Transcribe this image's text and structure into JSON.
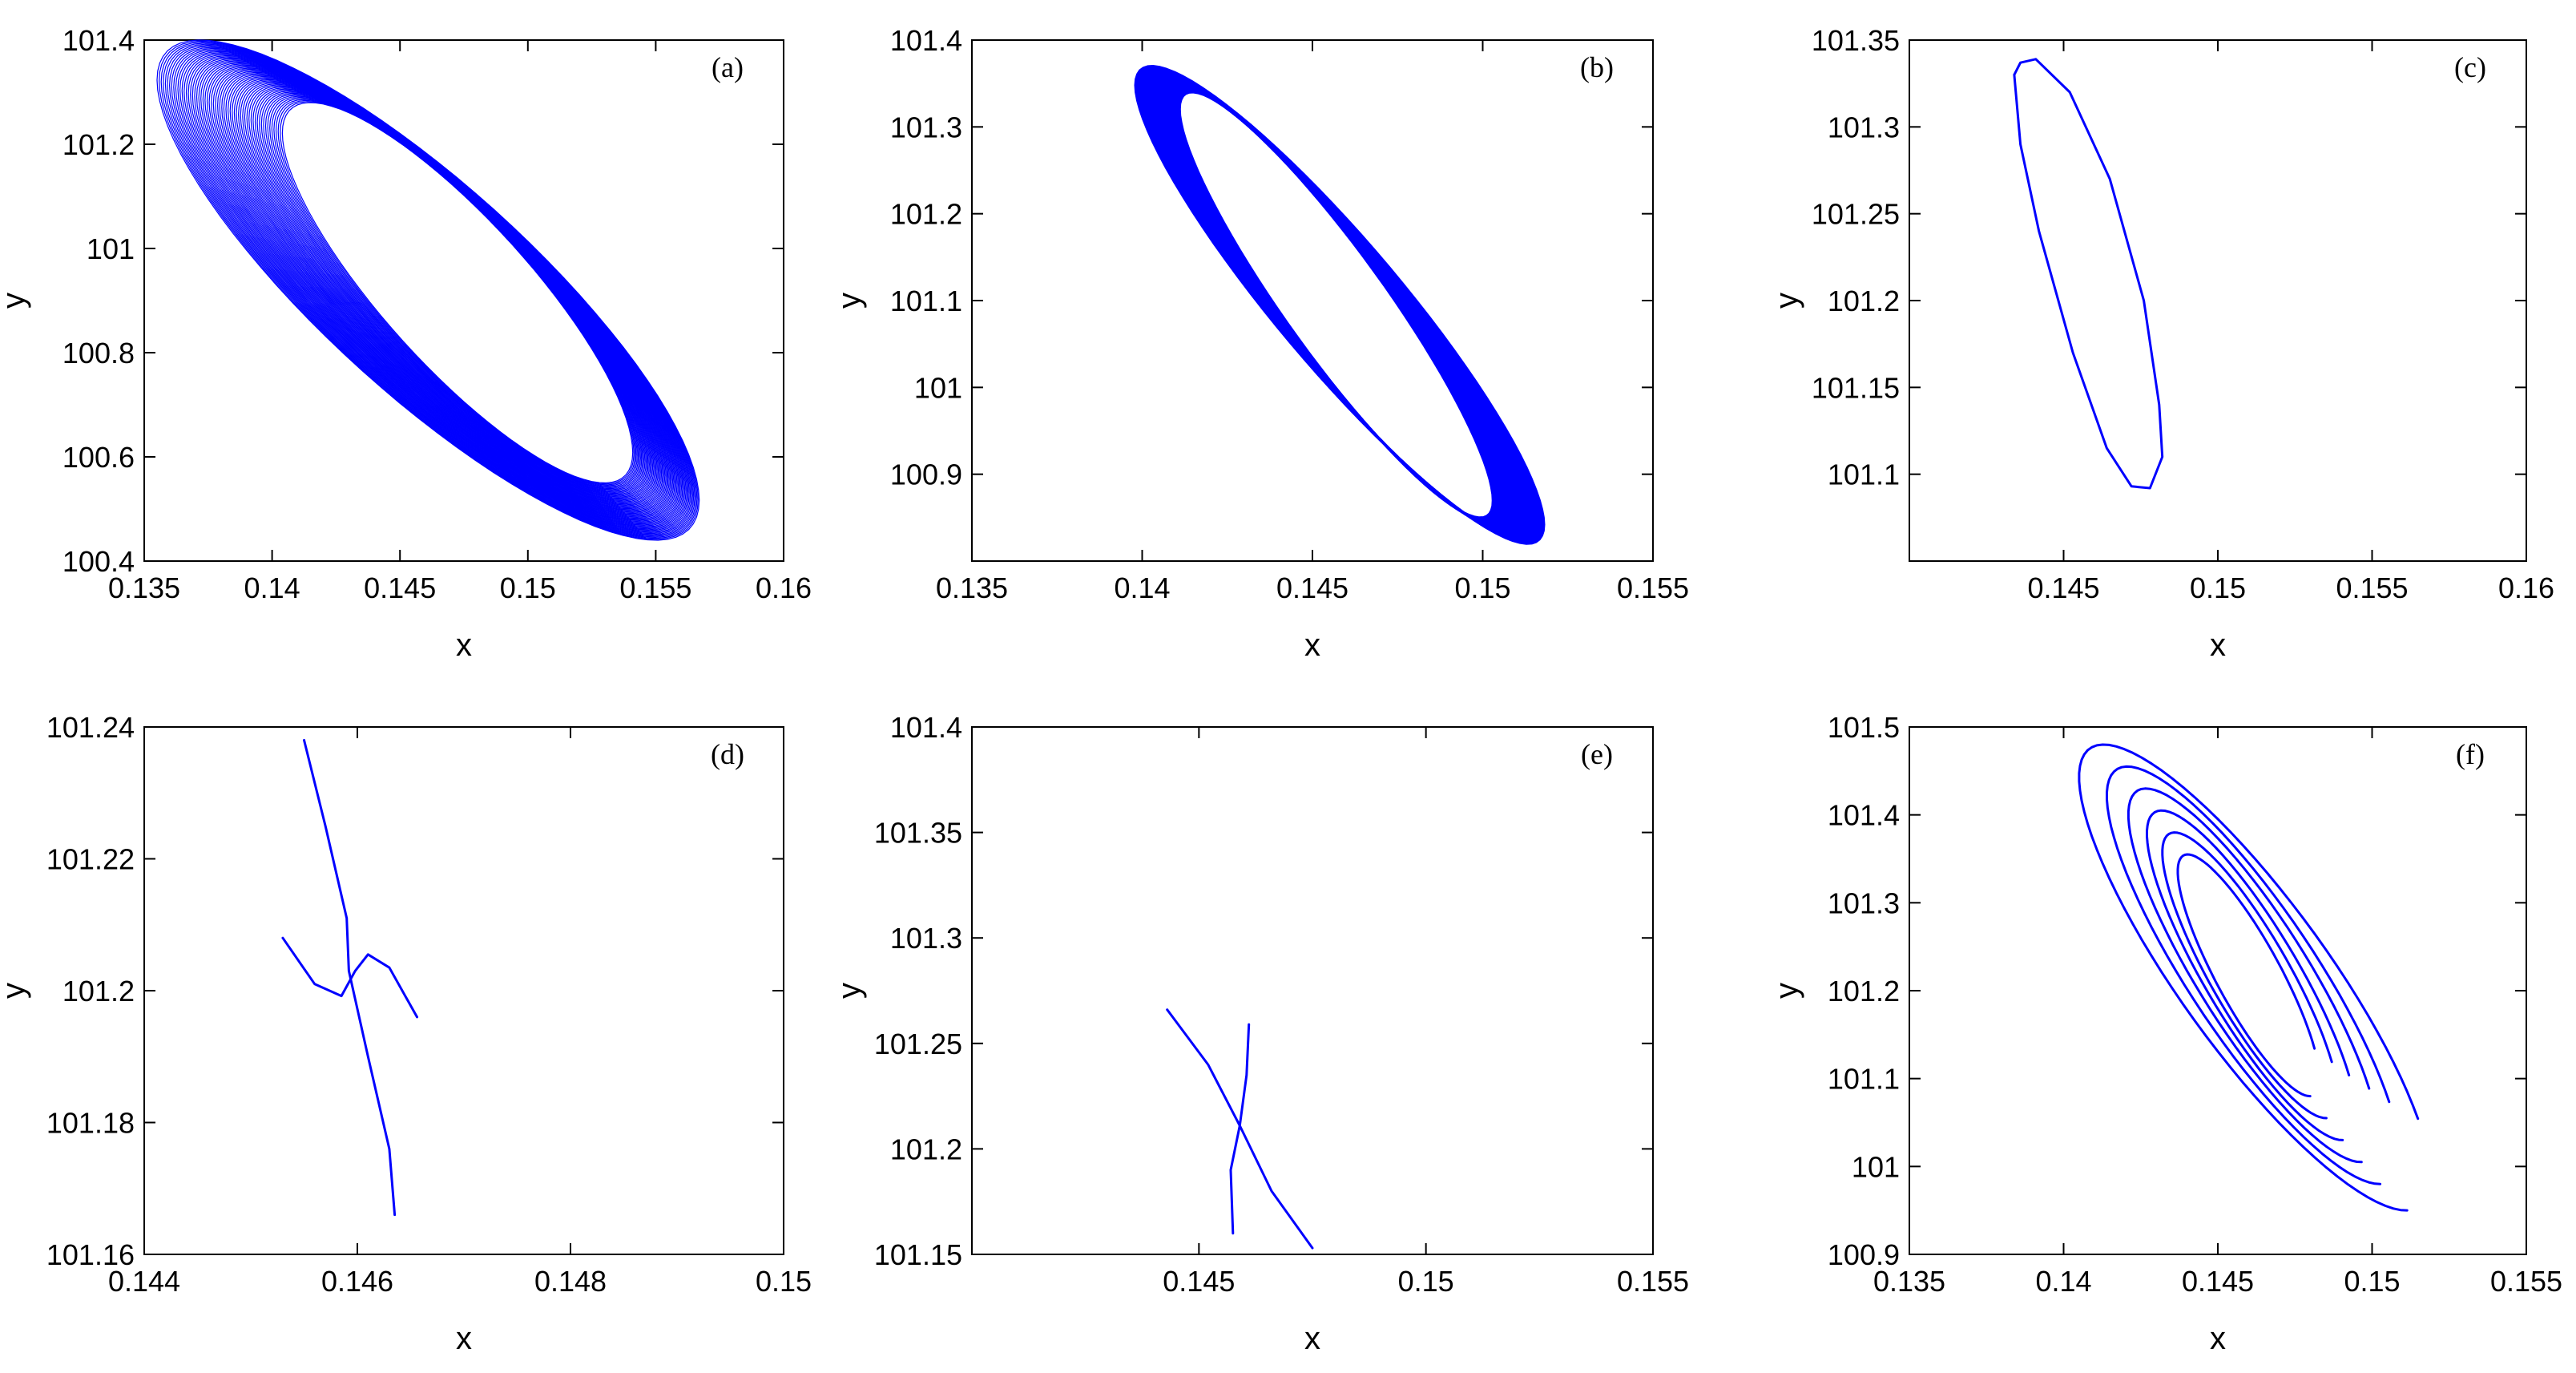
{
  "chart_data": [
    {
      "panel": "(a)",
      "type": "line",
      "xlabel": "x",
      "ylabel": "y",
      "xlim": [
        0.135,
        0.16
      ],
      "ylim": [
        100.4,
        101.4
      ],
      "xticks": [
        "0.135",
        "0.14",
        "0.145",
        "0.15",
        "0.155",
        "0.16"
      ],
      "yticks": [
        "100.4",
        "100.6",
        "100.8",
        "101",
        "101.2",
        "101.4"
      ],
      "grid": false,
      "series": [
        {
          "style": "dense spiral band (many closed loops)",
          "outer_envelope": {
            "x_range": [
              0.1355,
              0.1567
            ],
            "y_range": [
              100.44,
              101.4
            ]
          },
          "inner_envelope": {
            "x_range": [
              0.1404,
              0.1541
            ],
            "y_range": [
              100.55,
              101.28
            ]
          }
        }
      ]
    },
    {
      "panel": "(b)",
      "type": "line",
      "xlabel": "x",
      "ylabel": "y",
      "xlim": [
        0.135,
        0.155
      ],
      "ylim": [
        100.8,
        101.4
      ],
      "xticks": [
        "0.135",
        "0.14",
        "0.145",
        "0.15",
        "0.155"
      ],
      "yticks": [
        "100.9",
        "101",
        "101.1",
        "101.2",
        "101.3",
        "101.4"
      ],
      "grid": false,
      "series": [
        {
          "style": "thick closed loop band",
          "outer_envelope": {
            "x_range": [
              0.1398,
              0.1518
            ],
            "y_range": [
              100.82,
              101.37
            ]
          },
          "inner_envelope": {
            "x_range": [
              0.1411,
              0.1503
            ],
            "y_range": [
              100.85,
              101.34
            ]
          }
        }
      ]
    },
    {
      "panel": "(c)",
      "type": "line",
      "xlabel": "x",
      "ylabel": "y",
      "xlim": [
        0.14,
        0.16
      ],
      "ylim": [
        101.05,
        101.35
      ],
      "xticks": [
        "0.145",
        "0.15",
        "0.155",
        "0.16"
      ],
      "yticks": [
        "101.1",
        "101.15",
        "101.2",
        "101.25",
        "101.3",
        "101.35"
      ],
      "grid": false,
      "series": [
        {
          "style": "closed loop",
          "points": [
            [
              0.1434,
              101.33
            ],
            [
              0.1436,
              101.337
            ],
            [
              0.1441,
              101.339
            ],
            [
              0.1452,
              101.32
            ],
            [
              0.1465,
              101.27
            ],
            [
              0.1476,
              101.2
            ],
            [
              0.1481,
              101.14
            ],
            [
              0.1482,
              101.11
            ],
            [
              0.1478,
              101.092
            ],
            [
              0.1472,
              101.093
            ],
            [
              0.1464,
              101.115
            ],
            [
              0.1453,
              101.17
            ],
            [
              0.1442,
              101.24
            ],
            [
              0.1436,
              101.29
            ],
            [
              0.1434,
              101.33
            ]
          ]
        }
      ]
    },
    {
      "panel": "(d)",
      "type": "line",
      "xlabel": "x",
      "ylabel": "y",
      "xlim": [
        0.144,
        0.15
      ],
      "ylim": [
        101.16,
        101.24
      ],
      "xticks": [
        "0.144",
        "0.146",
        "0.148",
        "0.15"
      ],
      "yticks": [
        "101.16",
        "101.18",
        "101.2",
        "101.22",
        "101.24"
      ],
      "grid": false,
      "series": [
        {
          "points": [
            [
              0.1455,
              101.238
            ],
            [
              0.1457,
              101.225
            ],
            [
              0.1459,
              101.211
            ],
            [
              0.14592,
              101.203
            ],
            [
              0.1461,
              101.19
            ],
            [
              0.1463,
              101.176
            ],
            [
              0.14635,
              101.166
            ]
          ]
        },
        {
          "points": [
            [
              0.1453,
              101.208
            ],
            [
              0.1456,
              101.201
            ],
            [
              0.14585,
              101.1992
            ],
            [
              0.14598,
              101.203
            ],
            [
              0.1461,
              101.2055
            ],
            [
              0.1463,
              101.2035
            ],
            [
              0.14656,
              101.196
            ]
          ]
        }
      ]
    },
    {
      "panel": "(e)",
      "type": "line",
      "xlabel": "x",
      "ylabel": "y",
      "xlim": [
        0.14,
        0.155
      ],
      "ylim": [
        101.15,
        101.4
      ],
      "xticks": [
        "0.145",
        "0.15",
        "0.155"
      ],
      "yticks": [
        "101.15",
        "101.2",
        "101.25",
        "101.3",
        "101.35",
        "101.4"
      ],
      "grid": false,
      "series": [
        {
          "points": [
            [
              0.1443,
              101.266
            ],
            [
              0.1452,
              101.24
            ],
            [
              0.1459,
              101.211
            ],
            [
              0.1466,
              101.18
            ],
            [
              0.1475,
              101.153
            ]
          ]
        },
        {
          "points": [
            [
              0.1461,
              101.259
            ],
            [
              0.14605,
              101.235
            ],
            [
              0.1459,
              101.211
            ],
            [
              0.1457,
              101.19
            ],
            [
              0.14575,
              101.16
            ]
          ]
        }
      ]
    },
    {
      "panel": "(f)",
      "type": "line",
      "xlabel": "x",
      "ylabel": "y",
      "xlim": [
        0.135,
        0.155
      ],
      "ylim": [
        100.9,
        101.5
      ],
      "xticks": [
        "0.135",
        "0.14",
        "0.145",
        "0.15",
        "0.155"
      ],
      "yticks": [
        "100.9",
        "101",
        "101.1",
        "101.2",
        "101.3",
        "101.4",
        "101.5"
      ],
      "grid": false,
      "series": [
        {
          "style": "spiral of several loops",
          "loops": [
            {
              "x_range": [
                0.1405,
                0.1519
              ],
              "y_range": [
                100.95,
                101.48
              ]
            },
            {
              "x_range": [
                0.1414,
                0.1509
              ],
              "y_range": [
                100.98,
                101.455
              ]
            },
            {
              "x_range": [
                0.1421,
                0.1502
              ],
              "y_range": [
                101.005,
                101.43
              ]
            },
            {
              "x_range": [
                0.1427,
                0.1495
              ],
              "y_range": [
                101.03,
                101.405
              ]
            },
            {
              "x_range": [
                0.1432,
                0.1489
              ],
              "y_range": [
                101.055,
                101.38
              ]
            },
            {
              "x_range": [
                0.1437,
                0.1483
              ],
              "y_range": [
                101.08,
                101.355
              ]
            }
          ]
        }
      ]
    }
  ],
  "series_color": "#0000ff",
  "frame_color": "#000000"
}
